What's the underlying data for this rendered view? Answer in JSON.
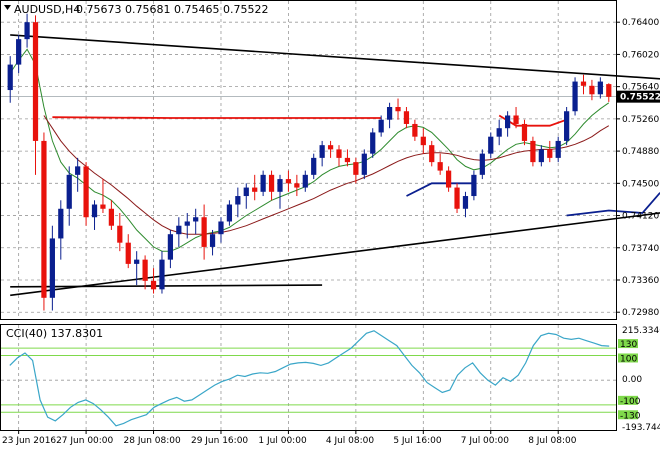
{
  "header": {
    "symbol": "AUDUSD,H4",
    "ohlc": "0.75673 0.75681 0.75465 0.75522"
  },
  "indicator_header": "CCI(40) 137.8301",
  "current_price_tag": "0.75522",
  "colors": {
    "bull": "#0a1f8f",
    "bear": "#e8120c",
    "ma_fast": "#2e8b2e",
    "ma_slow": "#8b1a1a",
    "cci": "#3aa6c8",
    "levels": "#7fd94b",
    "trend": "#000000"
  },
  "chart_data": [
    {
      "type": "candlestick",
      "title": "AUDUSD,H4",
      "y_ticks": [
        "0.76400",
        "0.76020",
        "0.75640",
        "0.75260",
        "0.74880",
        "0.74500",
        "0.74120",
        "0.73740",
        "0.73360",
        "0.72980"
      ],
      "x_ticks": [
        "23 Jun 2016",
        "27 Jun 00:00",
        "28 Jun 08:00",
        "29 Jun 16:00",
        "1 Jul 00:00",
        "4 Jul 08:00",
        "5 Jul 16:00",
        "7 Jul 00:00",
        "8 Jul 08:00"
      ],
      "ylim": [
        0.729,
        0.7665
      ],
      "grid": true,
      "last_price": 0.75522,
      "candles": [
        [
          0.756,
          0.76,
          0.7545,
          0.759
        ],
        [
          0.759,
          0.7625,
          0.758,
          0.762
        ],
        [
          0.762,
          0.765,
          0.761,
          0.764
        ],
        [
          0.764,
          0.7648,
          0.746,
          0.75
        ],
        [
          0.75,
          0.751,
          0.73,
          0.7315
        ],
        [
          0.7315,
          0.74,
          0.73,
          0.7385
        ],
        [
          0.7385,
          0.743,
          0.736,
          0.742
        ],
        [
          0.742,
          0.747,
          0.74,
          0.746
        ],
        [
          0.746,
          0.748,
          0.744,
          0.747
        ],
        [
          0.747,
          0.7475,
          0.74,
          0.741
        ],
        [
          0.741,
          0.743,
          0.7395,
          0.7425
        ],
        [
          0.7425,
          0.7455,
          0.7415,
          0.742
        ],
        [
          0.742,
          0.743,
          0.7395,
          0.74
        ],
        [
          0.74,
          0.7415,
          0.737,
          0.738
        ],
        [
          0.738,
          0.739,
          0.735,
          0.7355
        ],
        [
          0.7355,
          0.737,
          0.733,
          0.736
        ],
        [
          0.736,
          0.7365,
          0.7325,
          0.7335
        ],
        [
          0.7335,
          0.735,
          0.732,
          0.7325
        ],
        [
          0.7325,
          0.737,
          0.732,
          0.736
        ],
        [
          0.736,
          0.7395,
          0.735,
          0.739
        ],
        [
          0.739,
          0.741,
          0.7375,
          0.74
        ],
        [
          0.74,
          0.7415,
          0.7385,
          0.7405
        ],
        [
          0.7405,
          0.742,
          0.739,
          0.741
        ],
        [
          0.741,
          0.7425,
          0.736,
          0.7375
        ],
        [
          0.7375,
          0.7395,
          0.7365,
          0.739
        ],
        [
          0.739,
          0.741,
          0.738,
          0.7405
        ],
        [
          0.7405,
          0.743,
          0.74,
          0.7425
        ],
        [
          0.7425,
          0.7445,
          0.741,
          0.7435
        ],
        [
          0.7435,
          0.745,
          0.742,
          0.7445
        ],
        [
          0.7445,
          0.746,
          0.743,
          0.744
        ],
        [
          0.744,
          0.7465,
          0.7435,
          0.746
        ],
        [
          0.746,
          0.7465,
          0.743,
          0.744
        ],
        [
          0.744,
          0.746,
          0.742,
          0.7455
        ],
        [
          0.7455,
          0.7465,
          0.744,
          0.745
        ],
        [
          0.745,
          0.746,
          0.7435,
          0.7445
        ],
        [
          0.7445,
          0.7465,
          0.744,
          0.746
        ],
        [
          0.746,
          0.7485,
          0.7455,
          0.748
        ],
        [
          0.748,
          0.75,
          0.747,
          0.7495
        ],
        [
          0.7495,
          0.75,
          0.748,
          0.749
        ],
        [
          0.749,
          0.7495,
          0.747,
          0.748
        ],
        [
          0.748,
          0.749,
          0.747,
          0.7475
        ],
        [
          0.7475,
          0.748,
          0.745,
          0.746
        ],
        [
          0.746,
          0.749,
          0.7455,
          0.7485
        ],
        [
          0.7485,
          0.7515,
          0.748,
          0.751
        ],
        [
          0.751,
          0.753,
          0.7505,
          0.7525
        ],
        [
          0.7525,
          0.7545,
          0.7515,
          0.754
        ],
        [
          0.754,
          0.755,
          0.7525,
          0.7535
        ],
        [
          0.7535,
          0.754,
          0.7515,
          0.752
        ],
        [
          0.752,
          0.7525,
          0.75,
          0.7505
        ],
        [
          0.7505,
          0.7515,
          0.7485,
          0.7495
        ],
        [
          0.7495,
          0.75,
          0.747,
          0.7475
        ],
        [
          0.7475,
          0.7485,
          0.746,
          0.7465
        ],
        [
          0.7465,
          0.747,
          0.744,
          0.7445
        ],
        [
          0.7445,
          0.745,
          0.7415,
          0.742
        ],
        [
          0.742,
          0.744,
          0.741,
          0.7435
        ],
        [
          0.7435,
          0.7465,
          0.743,
          0.746
        ],
        [
          0.746,
          0.749,
          0.7455,
          0.7485
        ],
        [
          0.7485,
          0.751,
          0.748,
          0.7505
        ],
        [
          0.7505,
          0.7525,
          0.7495,
          0.7515
        ],
        [
          0.7515,
          0.7535,
          0.7505,
          0.753
        ],
        [
          0.753,
          0.754,
          0.7515,
          0.752
        ],
        [
          0.752,
          0.7525,
          0.7495,
          0.75
        ],
        [
          0.75,
          0.7505,
          0.747,
          0.7475
        ],
        [
          0.7475,
          0.7495,
          0.747,
          0.749
        ],
        [
          0.749,
          0.75,
          0.7475,
          0.748
        ],
        [
          0.748,
          0.7505,
          0.7475,
          0.75
        ],
        [
          0.75,
          0.754,
          0.7495,
          0.7535
        ],
        [
          0.7535,
          0.7575,
          0.753,
          0.757
        ],
        [
          0.757,
          0.7578,
          0.7555,
          0.7565
        ],
        [
          0.7565,
          0.7572,
          0.7548,
          0.7555
        ],
        [
          0.7555,
          0.7575,
          0.755,
          0.757
        ],
        [
          0.7567,
          0.7568,
          0.7546,
          0.7552
        ]
      ],
      "overlays": [
        {
          "type": "ma",
          "color_key": "ma_fast",
          "values": [
            0.758,
            0.7595,
            0.7608,
            0.759,
            0.754,
            0.75,
            0.7475,
            0.7462,
            0.7456,
            0.7448,
            0.744,
            0.7436,
            0.743,
            0.742,
            0.7408,
            0.7395,
            0.7385,
            0.7375,
            0.737,
            0.737,
            0.7374,
            0.738,
            0.7386,
            0.739,
            0.7392,
            0.7394,
            0.7398,
            0.7405,
            0.7412,
            0.7418,
            0.7424,
            0.743,
            0.7434,
            0.7438,
            0.7442,
            0.7446,
            0.7452,
            0.746,
            0.7466,
            0.747,
            0.7472,
            0.7473,
            0.7476,
            0.7482,
            0.749,
            0.75,
            0.751,
            0.7516,
            0.7518,
            0.7516,
            0.751,
            0.75,
            0.749,
            0.7478,
            0.747,
            0.7466,
            0.7468,
            0.7474,
            0.7482,
            0.749,
            0.7496,
            0.7498,
            0.7496,
            0.7494,
            0.7492,
            0.7493,
            0.7498,
            0.7508,
            0.752,
            0.753,
            0.7538,
            0.7545
          ]
        },
        {
          "type": "ma",
          "color_key": "ma_slow",
          "values": [
            null,
            null,
            null,
            null,
            0.753,
            0.7515,
            0.75,
            0.7488,
            0.7478,
            0.747,
            0.7462,
            0.7455,
            0.7448,
            0.744,
            0.7432,
            0.7423,
            0.7415,
            0.7407,
            0.74,
            0.7395,
            0.7392,
            0.739,
            0.739,
            0.739,
            0.7391,
            0.7392,
            0.7394,
            0.7397,
            0.74,
            0.7404,
            0.7408,
            0.7412,
            0.7416,
            0.742,
            0.7424,
            0.7428,
            0.7432,
            0.7437,
            0.7442,
            0.7446,
            0.745,
            0.7453,
            0.7457,
            0.7461,
            0.7466,
            0.7471,
            0.7476,
            0.748,
            0.7483,
            0.7485,
            0.7486,
            0.7486,
            0.7485,
            0.7483,
            0.748,
            0.7478,
            0.7477,
            0.7478,
            0.748,
            0.7483,
            0.7486,
            0.7488,
            0.7489,
            0.749,
            0.749,
            0.7491,
            0.7493,
            0.7496,
            0.75,
            0.7505,
            0.7512,
            0.7518
          ]
        },
        {
          "type": "segment",
          "color_key": "bear",
          "points": [
            [
              5,
              0.7528
            ],
            [
              19,
              0.7527
            ],
            [
              44,
              0.7527
            ]
          ]
        },
        {
          "type": "segment",
          "color_key": "bear",
          "points": [
            [
              58,
              0.753
            ],
            [
              60,
              0.7518
            ],
            [
              64,
              0.7518
            ],
            [
              66,
              0.7525
            ]
          ]
        },
        {
          "type": "segment",
          "color_key": "bull",
          "points": [
            [
              47,
              0.7435
            ],
            [
              50,
              0.745
            ],
            [
              55,
              0.745
            ]
          ]
        },
        {
          "type": "segment",
          "color_key": "bull",
          "points": [
            [
              66,
              0.7412
            ],
            [
              71,
              0.7418
            ],
            [
              75,
              0.7415
            ],
            [
              77,
              0.7438
            ],
            [
              79,
              0.7452
            ],
            [
              81,
              0.7454
            ]
          ]
        },
        {
          "type": "segment",
          "color_key": "trend",
          "points": [
            [
              0,
              0.7328
            ],
            [
              37,
              0.733
            ]
          ]
        },
        {
          "type": "segment",
          "color_key": "trend",
          "points": [
            [
              0,
              0.7625
            ],
            [
              85,
              0.7568
            ]
          ]
        },
        {
          "type": "segment",
          "color_key": "trend",
          "points": [
            [
              0,
              0.7318
            ],
            [
              85,
              0.7425
            ]
          ]
        }
      ]
    },
    {
      "type": "line",
      "title": "CCI(40) 137.8301",
      "y_ticks": [
        "215.3346",
        "130",
        "100",
        "0.00",
        "-100",
        "-130",
        "-193.7444"
      ],
      "ylim": [
        -193.7444,
        215.3346
      ],
      "levels": [
        130,
        100,
        -100,
        -130
      ],
      "series": [
        {
          "values": [
            60,
            90,
            110,
            80,
            -80,
            -150,
            -165,
            -140,
            -110,
            -90,
            -80,
            -95,
            -120,
            -150,
            -185,
            -175,
            -160,
            -150,
            -140,
            -110,
            -95,
            -80,
            -70,
            -85,
            -80,
            -60,
            -40,
            -20,
            -5,
            5,
            20,
            15,
            25,
            30,
            28,
            35,
            50,
            65,
            70,
            72,
            68,
            60,
            70,
            90,
            110,
            130,
            160,
            190,
            200,
            180,
            160,
            140,
            100,
            60,
            30,
            -10,
            -30,
            -50,
            -40,
            20,
            50,
            70,
            30,
            0,
            -20,
            10,
            -5,
            20,
            70,
            140,
            180,
            190,
            185,
            170,
            165,
            170,
            160,
            150,
            140,
            137.8301
          ]
        }
      ]
    }
  ]
}
